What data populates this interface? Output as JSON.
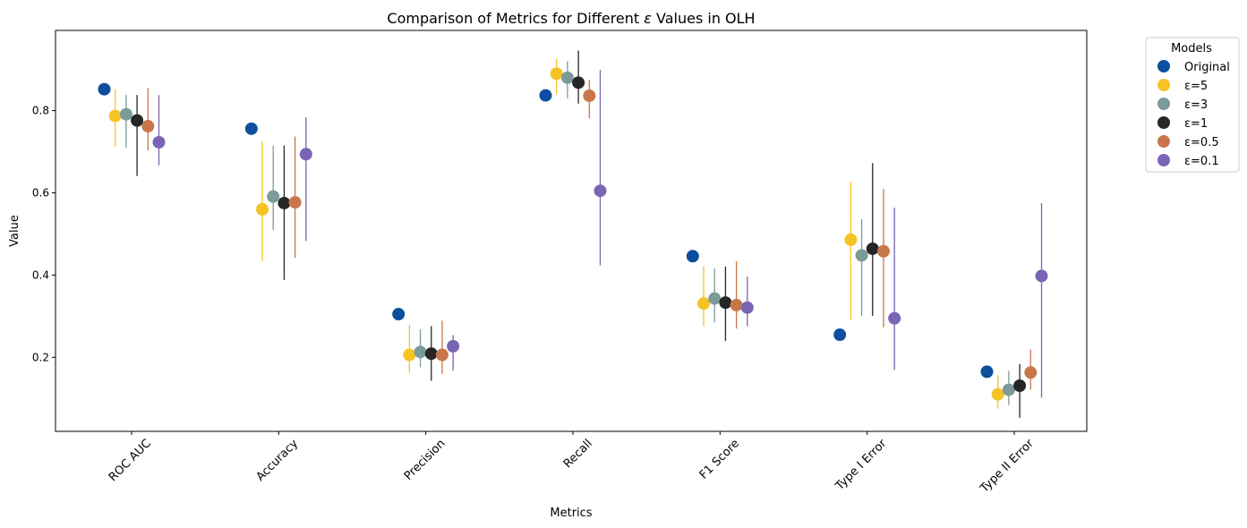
{
  "chart_data": {
    "type": "scatter",
    "title_prefix": "Comparison of Metrics for Different ",
    "title_symbol": "ε",
    "title_suffix": " Values in OLH",
    "xlabel": "Metrics",
    "ylabel": "Value",
    "categories": [
      "ROC AUC",
      "Accuracy",
      "Precision",
      "Recall",
      "F1 Score",
      "Type I Error",
      "Type II Error"
    ],
    "ylim": [
      0.02,
      0.995
    ],
    "yticks": [
      "0.2",
      "0.4",
      "0.6",
      "0.8"
    ],
    "legend": {
      "title": "Models",
      "position": "outside-top-right"
    },
    "grid": false,
    "series": [
      {
        "name": "Original",
        "color": "#0d4f9e",
        "values": [
          0.852,
          0.756,
          0.305,
          0.837,
          0.446,
          0.255,
          0.165
        ],
        "errors": [
          null,
          null,
          null,
          null,
          null,
          null,
          null
        ]
      },
      {
        "name": "ε=5",
        "color": "#f6c324",
        "values": [
          0.787,
          0.56,
          0.206,
          0.89,
          0.331,
          0.486,
          0.11
        ],
        "errors": [
          [
            0.713,
            0.852
          ],
          [
            0.435,
            0.724
          ],
          [
            0.163,
            0.279
          ],
          [
            0.84,
            0.926
          ],
          [
            0.276,
            0.422
          ],
          [
            0.292,
            0.628
          ],
          [
            0.075,
            0.156
          ]
        ]
      },
      {
        "name": "ε=3",
        "color": "#7b9a9a",
        "values": [
          0.791,
          0.591,
          0.213,
          0.88,
          0.343,
          0.448,
          0.121
        ],
        "errors": [
          [
            0.71,
            0.838
          ],
          [
            0.51,
            0.715
          ],
          [
            0.176,
            0.268
          ],
          [
            0.83,
            0.92
          ],
          [
            0.285,
            0.416
          ],
          [
            0.301,
            0.536
          ],
          [
            0.084,
            0.167
          ]
        ]
      },
      {
        "name": "ε=1",
        "color": "#262626",
        "values": [
          0.776,
          0.575,
          0.209,
          0.868,
          0.333,
          0.464,
          0.131
        ],
        "errors": [
          [
            0.641,
            0.838
          ],
          [
            0.388,
            0.715
          ],
          [
            0.143,
            0.276
          ],
          [
            0.817,
            0.946
          ],
          [
            0.24,
            0.421
          ],
          [
            0.301,
            0.672
          ],
          [
            0.053,
            0.184
          ]
        ]
      },
      {
        "name": "ε=0.5",
        "color": "#c8774a",
        "values": [
          0.762,
          0.577,
          0.206,
          0.836,
          0.327,
          0.458,
          0.163
        ],
        "errors": [
          [
            0.703,
            0.855
          ],
          [
            0.442,
            0.737
          ],
          [
            0.16,
            0.289
          ],
          [
            0.781,
            0.875
          ],
          [
            0.27,
            0.434
          ],
          [
            0.273,
            0.609
          ],
          [
            0.121,
            0.219
          ]
        ]
      },
      {
        "name": "ε=0.1",
        "color": "#7a64b4",
        "values": [
          0.723,
          0.694,
          0.227,
          0.605,
          0.321,
          0.295,
          0.398
        ],
        "errors": [
          [
            0.667,
            0.838
          ],
          [
            0.483,
            0.784
          ],
          [
            0.168,
            0.254
          ],
          [
            0.424,
            0.899
          ],
          [
            0.276,
            0.396
          ],
          [
            0.169,
            0.564
          ],
          [
            0.102,
            0.575
          ]
        ]
      }
    ]
  }
}
